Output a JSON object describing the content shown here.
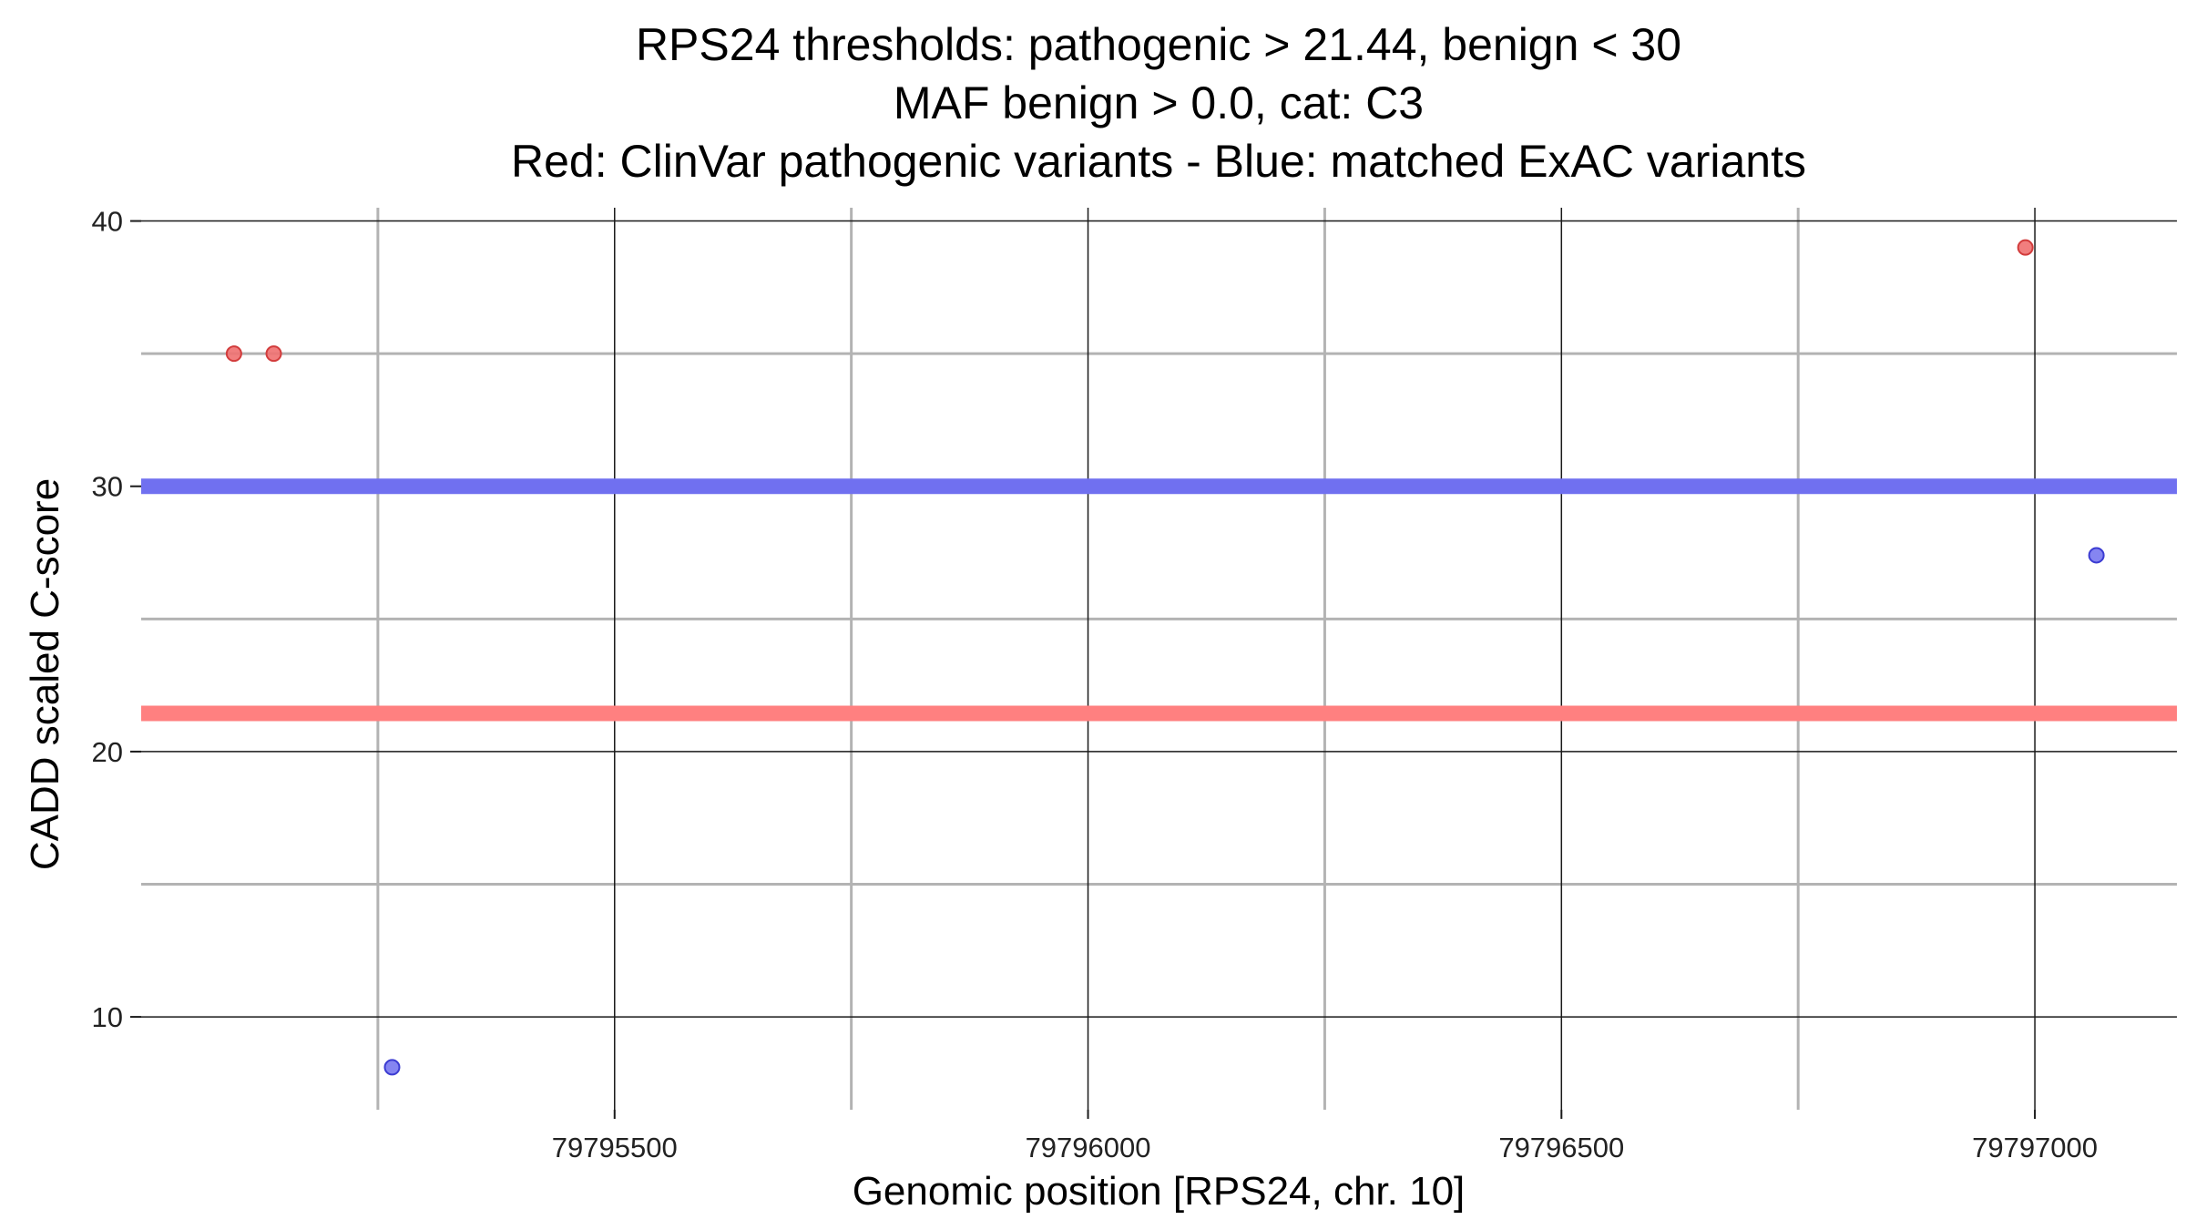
{
  "chart_data": {
    "type": "scatter",
    "title_lines": [
      "RPS24 thresholds: pathogenic > 21.44, benign < 30",
      "MAF benign > 0.0, cat: C3",
      "Red: ClinVar pathogenic variants - Blue: matched ExAC variants"
    ],
    "xlabel": "Genomic position [RPS24, chr. 10]",
    "ylabel": "CADD scaled C-score",
    "xlim": [
      79795000,
      79797150
    ],
    "ylim": [
      6.5,
      40.5
    ],
    "x_major_ticks": [
      79795500,
      79796000,
      79796500,
      79797000
    ],
    "x_major_tick_labels": [
      "79795500",
      "79796000",
      "79796500",
      "79797000"
    ],
    "x_minor_gridlines": [
      79795250,
      79795750,
      79796250,
      79796750
    ],
    "y_major_ticks": [
      10,
      20,
      30,
      40
    ],
    "y_major_tick_labels": [
      "10",
      "20",
      "30",
      "40"
    ],
    "y_minor_gridlines": [
      15,
      25,
      35
    ],
    "thresholds": [
      {
        "name": "pathogenic-threshold",
        "value": 21.44,
        "color": "#ff8080"
      },
      {
        "name": "benign-threshold",
        "value": 30,
        "color": "#7070f0"
      }
    ],
    "series": [
      {
        "name": "ClinVar pathogenic variants",
        "color": "#f07070",
        "stroke": "#d23c3c",
        "points": [
          {
            "x": 79795098,
            "y": 35
          },
          {
            "x": 79795140,
            "y": 35
          },
          {
            "x": 79796990,
            "y": 39
          }
        ]
      },
      {
        "name": "matched ExAC variants",
        "color": "#7878f0",
        "stroke": "#3c3cd2",
        "points": [
          {
            "x": 79795265,
            "y": 8.1
          },
          {
            "x": 79797065,
            "y": 27.4
          }
        ]
      }
    ]
  }
}
